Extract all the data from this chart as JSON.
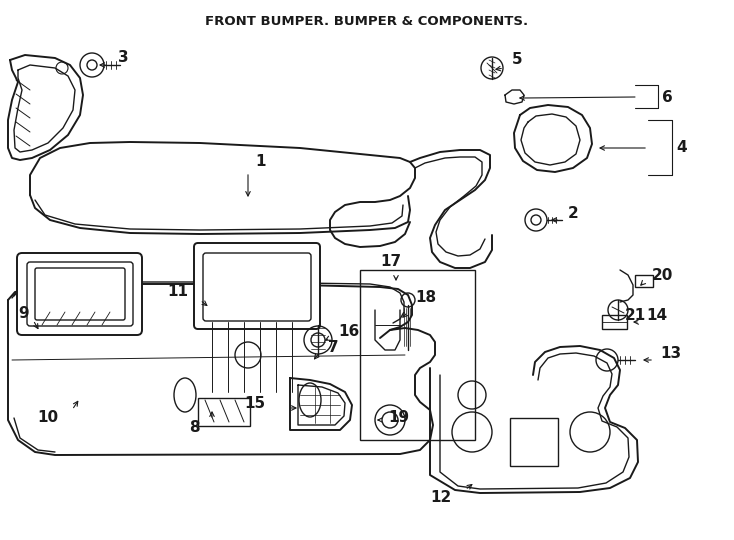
{
  "background": "#ffffff",
  "line_color": "#1a1a1a",
  "title": "FRONT BUMPER. BUMPER & COMPONENTS.",
  "label_fontsize": 11,
  "label_fontweight": "bold",
  "arrow_lw": 0.8,
  "parts_lw": 1.0,
  "parts_lw2": 1.4
}
